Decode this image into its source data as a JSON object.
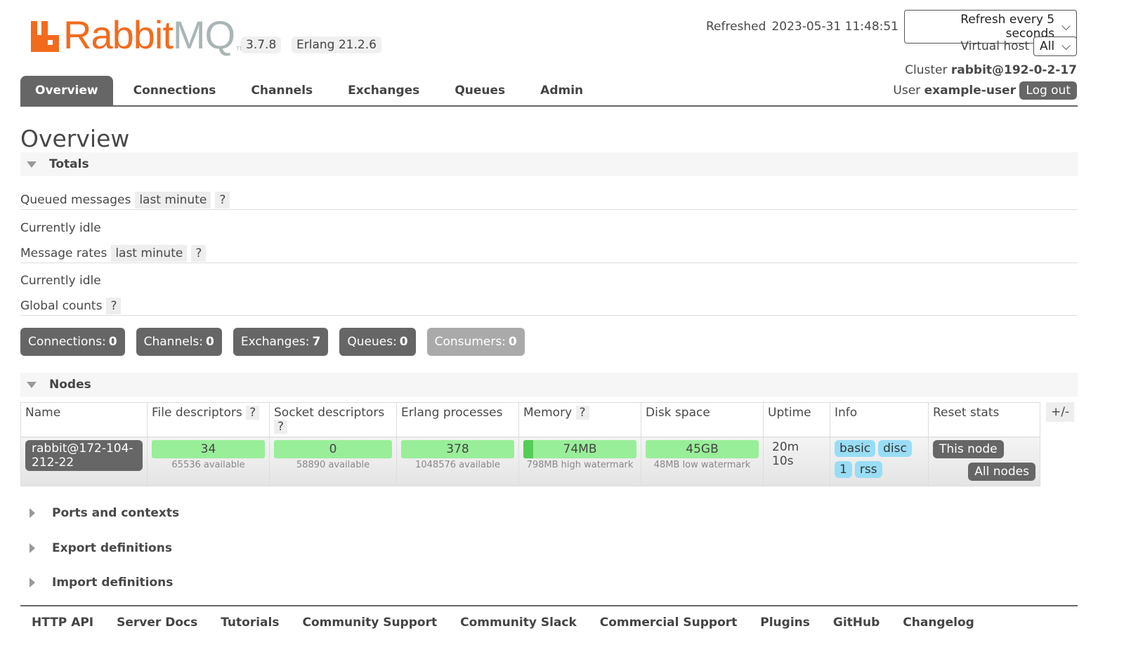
{
  "header": {
    "logo_text": "RabbitMQ",
    "version": "3.7.8",
    "erlang": "Erlang 21.2.6",
    "refreshed_label": "Refreshed",
    "refreshed": "2023-05-31 11:48:51",
    "refresh_select": "Refresh every 5 seconds",
    "vhost_label": "Virtual host",
    "vhost": "All",
    "cluster_label": "Cluster",
    "cluster": "rabbit@192-0-2-17",
    "user_label": "User",
    "user": "example-user",
    "logout": "Log out"
  },
  "tabs": [
    "Overview",
    "Connections",
    "Channels",
    "Exchanges",
    "Queues",
    "Admin"
  ],
  "page_title": "Overview",
  "totals": {
    "title": "Totals",
    "queued_label": "Queued messages",
    "queued_range": "last minute",
    "help": "?",
    "idle1": "Currently idle",
    "rates_label": "Message rates",
    "rates_range": "last minute",
    "idle2": "Currently idle",
    "global_label": "Global counts",
    "counts": [
      {
        "label": "Connections:",
        "value": "0"
      },
      {
        "label": "Channels:",
        "value": "0"
      },
      {
        "label": "Exchanges:",
        "value": "7"
      },
      {
        "label": "Queues:",
        "value": "0"
      },
      {
        "label": "Consumers:",
        "value": "0"
      }
    ]
  },
  "nodes": {
    "title": "Nodes",
    "columns": [
      "Name",
      "File descriptors",
      "Socket descriptors",
      "Erlang processes",
      "Memory",
      "Disk space",
      "Uptime",
      "Info",
      "Reset stats"
    ],
    "plusminus": "+/-",
    "row": {
      "name": "rabbit@172-104-212-22",
      "fd": "34",
      "fd_sub": "65536 available",
      "sd": "0",
      "sd_sub": "58890 available",
      "ep": "378",
      "ep_sub": "1048576 available",
      "mem": "74MB",
      "mem_sub": "798MB high watermark",
      "mem_used_percent": 9,
      "disk": "45GB",
      "disk_sub": "48MB low watermark",
      "uptime1": "20m",
      "uptime2": "10s",
      "info": [
        "basic",
        "disc",
        "1",
        "rss"
      ],
      "this_node": "This node",
      "all_nodes": "All nodes"
    }
  },
  "sections": [
    "Ports and contexts",
    "Export definitions",
    "Import definitions"
  ],
  "footer": [
    "HTTP API",
    "Server Docs",
    "Tutorials",
    "Community Support",
    "Community Slack",
    "Commercial Support",
    "Plugins",
    "GitHub",
    "Changelog"
  ]
}
